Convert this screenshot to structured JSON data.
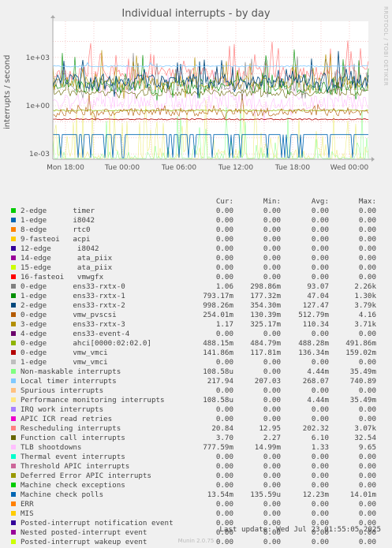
{
  "title": "Individual interrupts - by day",
  "side_label": "RRDTOOL / TOBI OETIKER",
  "footer": {
    "last_update": "Last update: Wed Jul 23 01:55:05 2025",
    "generator": "Munin 2.0.75"
  },
  "legend_headers": [
    "Cur:",
    "Min:",
    "Avg:",
    "Max:"
  ],
  "chart_data": {
    "type": "line",
    "title": "Individual interrupts - by day",
    "ylabel": "interrupts / second",
    "yscale": "log",
    "yticks": [
      "1e-03",
      "1e+00",
      "1e+03"
    ],
    "xticks": [
      "Mon 18:00",
      "Tue 00:00",
      "Tue 06:00",
      "Tue 12:00",
      "Tue 18:00",
      "Wed 00:00"
    ],
    "grid": true,
    "series": [
      {
        "name": "2-edge      timer",
        "color": "#00cc00",
        "cur": "0.00",
        "min": "0.00",
        "avg": "0.00",
        "max": "0.00"
      },
      {
        "name": "1-edge      i8042",
        "color": "#0066b3",
        "cur": "0.00",
        "min": "0.00",
        "avg": "0.00",
        "max": "0.00"
      },
      {
        "name": "8-edge      rtc0",
        "color": "#ff8000",
        "cur": "0.00",
        "min": "0.00",
        "avg": "0.00",
        "max": "0.00"
      },
      {
        "name": "9-fasteoi   acpi",
        "color": "#ffcc00",
        "cur": "0.00",
        "min": "0.00",
        "avg": "0.00",
        "max": "0.00"
      },
      {
        "name": "12-edge      i8042",
        "color": "#330099",
        "cur": "0.00",
        "min": "0.00",
        "avg": "0.00",
        "max": "0.00"
      },
      {
        "name": "14-edge      ata_piix",
        "color": "#990099",
        "cur": "0.00",
        "min": "0.00",
        "avg": "0.00",
        "max": "0.00"
      },
      {
        "name": "15-edge      ata_piix",
        "color": "#ccff00",
        "cur": "0.00",
        "min": "0.00",
        "avg": "0.00",
        "max": "0.00"
      },
      {
        "name": "16-fasteoi   vmwgfx",
        "color": "#ff0000",
        "cur": "0.00",
        "min": "0.00",
        "avg": "0.00",
        "max": "0.00"
      },
      {
        "name": "0-edge      ens33-rxtx-0",
        "color": "#808080",
        "cur": "1.06",
        "min": "298.86m",
        "avg": "93.07",
        "max": "2.26k"
      },
      {
        "name": "1-edge      ens33-rxtx-1",
        "color": "#008f00",
        "cur": "793.17m",
        "min": "177.32m",
        "avg": "47.04",
        "max": "1.30k"
      },
      {
        "name": "2-edge      ens33-rxtx-2",
        "color": "#00487d",
        "cur": "998.26m",
        "min": "354.30m",
        "avg": "127.47",
        "max": "3.79k"
      },
      {
        "name": "0-edge      vmw_pvscsi",
        "color": "#b35a00",
        "cur": "254.01m",
        "min": "130.39m",
        "avg": "512.79m",
        "max": "4.16"
      },
      {
        "name": "3-edge      ens33-rxtx-3",
        "color": "#b38f00",
        "cur": "1.17",
        "min": "325.17m",
        "avg": "110.34",
        "max": "3.71k"
      },
      {
        "name": "4-edge      ens33-event-4",
        "color": "#6b006b",
        "cur": "0.00",
        "min": "0.00",
        "avg": "0.00",
        "max": "0.00"
      },
      {
        "name": "0-edge      ahci[0000:02:02.0]",
        "color": "#8fb300",
        "cur": "488.15m",
        "min": "484.79m",
        "avg": "488.28m",
        "max": "491.86m"
      },
      {
        "name": "0-edge      vmw_vmci",
        "color": "#b30000",
        "cur": "141.86m",
        "min": "117.81m",
        "avg": "136.34m",
        "max": "159.02m"
      },
      {
        "name": "1-edge      vmw_vmci",
        "color": "#bebebe",
        "cur": "0.00",
        "min": "0.00",
        "avg": "0.00",
        "max": "0.00"
      },
      {
        "name": "Non-maskable interrupts",
        "color": "#80ff80",
        "cur": "108.58u",
        "min": "0.00",
        "avg": "4.44m",
        "max": "35.49m"
      },
      {
        "name": "Local timer interrupts",
        "color": "#80c9ff",
        "cur": "217.94",
        "min": "207.03",
        "avg": "268.07",
        "max": "740.89"
      },
      {
        "name": "Spurious interrupts",
        "color": "#ffc080",
        "cur": "0.00",
        "min": "0.00",
        "avg": "0.00",
        "max": "0.00"
      },
      {
        "name": "Performance monitoring interrupts",
        "color": "#ffe680",
        "cur": "108.58u",
        "min": "0.00",
        "avg": "4.44m",
        "max": "35.49m"
      },
      {
        "name": "IRQ work interrupts",
        "color": "#aa80ff",
        "cur": "0.00",
        "min": "0.00",
        "avg": "0.00",
        "max": "0.00"
      },
      {
        "name": "APIC ICR read retries",
        "color": "#ee00cc",
        "cur": "0.00",
        "min": "0.00",
        "avg": "0.00",
        "max": "0.00"
      },
      {
        "name": "Rescheduling interrupts",
        "color": "#ff8080",
        "cur": "20.84",
        "min": "12.95",
        "avg": "202.32",
        "max": "3.07k"
      },
      {
        "name": "Function call interrupts",
        "color": "#666600",
        "cur": "3.70",
        "min": "2.27",
        "avg": "6.10",
        "max": "32.54"
      },
      {
        "name": "TLB shootdowns",
        "color": "#ffbfff",
        "cur": "777.59m",
        "min": "14.99m",
        "avg": "1.33",
        "max": "9.65"
      },
      {
        "name": "Thermal event interrupts",
        "color": "#00ffcc",
        "cur": "0.00",
        "min": "0.00",
        "avg": "0.00",
        "max": "0.00"
      },
      {
        "name": "Threshold APIC interrupts",
        "color": "#cc6699",
        "cur": "0.00",
        "min": "0.00",
        "avg": "0.00",
        "max": "0.00"
      },
      {
        "name": "Deferred Error APIC interrupts",
        "color": "#999900",
        "cur": "0.00",
        "min": "0.00",
        "avg": "0.00",
        "max": "0.00"
      },
      {
        "name": "Machine check exceptions",
        "color": "#00cc00",
        "cur": "0.00",
        "min": "0.00",
        "avg": "0.00",
        "max": "0.00"
      },
      {
        "name": "Machine check polls",
        "color": "#0066b3",
        "cur": "13.54m",
        "min": "135.59u",
        "avg": "12.23m",
        "max": "14.01m"
      },
      {
        "name": "ERR",
        "color": "#ff8000",
        "cur": "0.00",
        "min": "0.00",
        "avg": "0.00",
        "max": "0.00"
      },
      {
        "name": "MIS",
        "color": "#ffcc00",
        "cur": "0.00",
        "min": "0.00",
        "avg": "0.00",
        "max": "0.00"
      },
      {
        "name": "Posted-interrupt notification event",
        "color": "#330099",
        "cur": "0.00",
        "min": "0.00",
        "avg": "0.00",
        "max": "0.00"
      },
      {
        "name": "Nested posted-interrupt event",
        "color": "#990099",
        "cur": "0.00",
        "min": "0.00",
        "avg": "0.00",
        "max": "0.00"
      },
      {
        "name": "Posted-interrupt wakeup event",
        "color": "#ccff00",
        "cur": "0.00",
        "min": "0.00",
        "avg": "0.00",
        "max": "0.00"
      }
    ]
  }
}
